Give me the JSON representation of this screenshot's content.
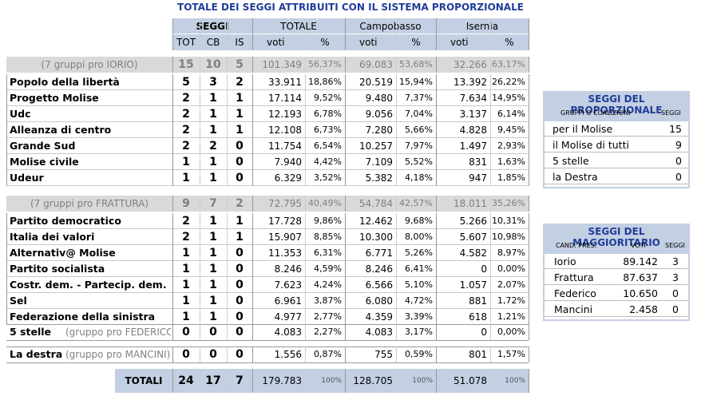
{
  "title": "TOTALE DEI SEGGI ATTRIBUITI CON IL SISTEMA PROPORZIONALE",
  "headers": {
    "seggi": "SEGGI",
    "totale": "TOTALE",
    "campobasso": "Campobasso",
    "isernia": "Isernia",
    "tot": "TOT",
    "cb": "CB",
    "is": "IS",
    "voti": "voti",
    "pct": "%"
  },
  "groups": [
    {
      "label": "(7 gruppi pro IORIO)",
      "summary": [
        "15",
        "10",
        "5",
        "101.349",
        "56,37%",
        "69.083",
        "53,68%",
        "32.266",
        "63,17%"
      ],
      "rows": [
        {
          "name": "Popolo della libertà",
          "v": [
            "5",
            "3",
            "2",
            "33.911",
            "18,86%",
            "20.519",
            "15,94%",
            "13.392",
            "26,22%"
          ]
        },
        {
          "name": "Progetto Molise",
          "v": [
            "2",
            "1",
            "1",
            "17.114",
            "9,52%",
            "9.480",
            "7,37%",
            "7.634",
            "14,95%"
          ]
        },
        {
          "name": "Udc",
          "v": [
            "2",
            "1",
            "1",
            "12.193",
            "6,78%",
            "9.056",
            "7,04%",
            "3.137",
            "6,14%"
          ]
        },
        {
          "name": "Alleanza di centro",
          "v": [
            "2",
            "1",
            "1",
            "12.108",
            "6,73%",
            "7.280",
            "5,66%",
            "4.828",
            "9,45%"
          ]
        },
        {
          "name": "Grande Sud",
          "v": [
            "2",
            "2",
            "0",
            "11.754",
            "6,54%",
            "10.257",
            "7,97%",
            "1.497",
            "2,93%"
          ]
        },
        {
          "name": "Molise civile",
          "v": [
            "1",
            "1",
            "0",
            "7.940",
            "4,42%",
            "7.109",
            "5,52%",
            "831",
            "1,63%"
          ]
        },
        {
          "name": "Udeur",
          "v": [
            "1",
            "1",
            "0",
            "6.329",
            "3,52%",
            "5.382",
            "4,18%",
            "947",
            "1,85%"
          ]
        }
      ]
    },
    {
      "label": "(7 gruppi pro FRATTURA)",
      "summary": [
        "9",
        "7",
        "2",
        "72.795",
        "40,49%",
        "54.784",
        "42,57%",
        "18.011",
        "35,26%"
      ],
      "rows": [
        {
          "name": "Partito democratico",
          "v": [
            "2",
            "1",
            "1",
            "17.728",
            "9,86%",
            "12.462",
            "9,68%",
            "5.266",
            "10,31%"
          ]
        },
        {
          "name": "Italia dei valori",
          "v": [
            "2",
            "1",
            "1",
            "15.907",
            "8,85%",
            "10.300",
            "8,00%",
            "5.607",
            "10,98%"
          ]
        },
        {
          "name": "Alternativ@ Molise",
          "v": [
            "1",
            "1",
            "0",
            "11.353",
            "6,31%",
            "6.771",
            "5,26%",
            "4.582",
            "8,97%"
          ]
        },
        {
          "name": "Partito socialista",
          "v": [
            "1",
            "1",
            "0",
            "8.246",
            "4,59%",
            "8.246",
            "6,41%",
            "0",
            "0,00%"
          ]
        },
        {
          "name": "Costr. dem. - Partecip. dem.",
          "v": [
            "1",
            "1",
            "0",
            "7.623",
            "4,24%",
            "6.566",
            "5,10%",
            "1.057",
            "2,07%"
          ]
        },
        {
          "name": "Sel",
          "v": [
            "1",
            "1",
            "0",
            "6.961",
            "3,87%",
            "6.080",
            "4,72%",
            "881",
            "1,72%"
          ]
        },
        {
          "name": "Federazione della sinistra",
          "v": [
            "1",
            "1",
            "0",
            "4.977",
            "2,77%",
            "4.359",
            "3,39%",
            "618",
            "1,21%"
          ]
        }
      ]
    }
  ],
  "singles": [
    {
      "name": "5 stelle",
      "note": "(gruppo pro FEDERICO)",
      "v": [
        "0",
        "0",
        "0",
        "4.083",
        "2,27%",
        "4.083",
        "3,17%",
        "0",
        "0,00%"
      ]
    },
    {
      "name": "La destra",
      "note": "(gruppo pro MANCINI)",
      "v": [
        "0",
        "0",
        "0",
        "1.556",
        "0,87%",
        "755",
        "0,59%",
        "801",
        "1,57%"
      ]
    }
  ],
  "totals": {
    "label": "TOTALI",
    "v": [
      "24",
      "17",
      "7",
      "179.783",
      "100%",
      "128.705",
      "100%",
      "51.078",
      "100%"
    ]
  },
  "proporzionale": {
    "title": "SEGGI DEL PROPORZIONALE",
    "sub_left": "GRUPPI O COALIZIONI",
    "sub_right": "SEGGI",
    "rows": [
      {
        "name": "per il Molise",
        "seggi": "15"
      },
      {
        "name": "il Molise di tutti",
        "seggi": "9"
      },
      {
        "name": "5 stelle",
        "seggi": "0"
      },
      {
        "name": "la Destra",
        "seggi": "0"
      }
    ]
  },
  "maggioritario": {
    "title": "SEGGI DEL MAGGIORITARIO",
    "sub_cand": "CAND. PRES.",
    "sub_voti": "VOTI",
    "sub_seggi": "SEGGI",
    "rows": [
      {
        "name": "Iorio",
        "voti": "89.142",
        "seggi": "3"
      },
      {
        "name": "Frattura",
        "voti": "87.637",
        "seggi": "3"
      },
      {
        "name": "Federico",
        "voti": "10.650",
        "seggi": "0"
      },
      {
        "name": "Mancini",
        "voti": "2.458",
        "seggi": "0"
      }
    ]
  }
}
